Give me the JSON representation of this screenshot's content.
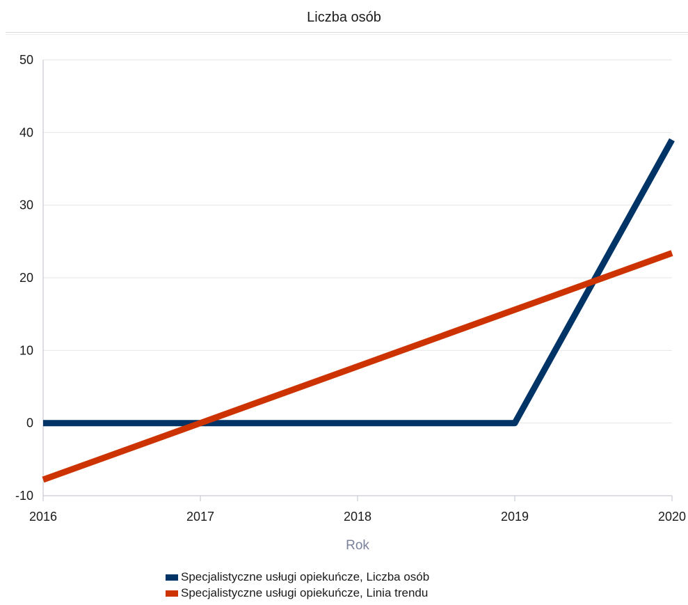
{
  "chart_data": {
    "type": "line",
    "title": "Liczba osób",
    "xlabel": "Rok",
    "ylabel": "",
    "x": [
      2016,
      2017,
      2018,
      2019,
      2020
    ],
    "x_tick_labels": [
      "2016",
      "2017",
      "2018",
      "2019",
      "2020"
    ],
    "xlim": [
      2016,
      2020
    ],
    "ylim": [
      -10,
      50
    ],
    "y_ticks": [
      -10,
      0,
      10,
      20,
      30,
      40,
      50
    ],
    "y_tick_labels": [
      "-10",
      "0",
      "10",
      "20",
      "30",
      "40",
      "50"
    ],
    "grid": "horizontal",
    "legend_position": "bottom-center",
    "series": [
      {
        "name": "Specjalistyczne usługi opiekuńcze, Liczba osób",
        "color": "#003366",
        "values": [
          0,
          0,
          0,
          0,
          39
        ]
      },
      {
        "name": "Specjalistyczne usługi opiekuńcze, Linia trendu",
        "color": "#cc3300",
        "values": [
          -7.8,
          0,
          7.8,
          15.6,
          23.4
        ]
      }
    ]
  }
}
